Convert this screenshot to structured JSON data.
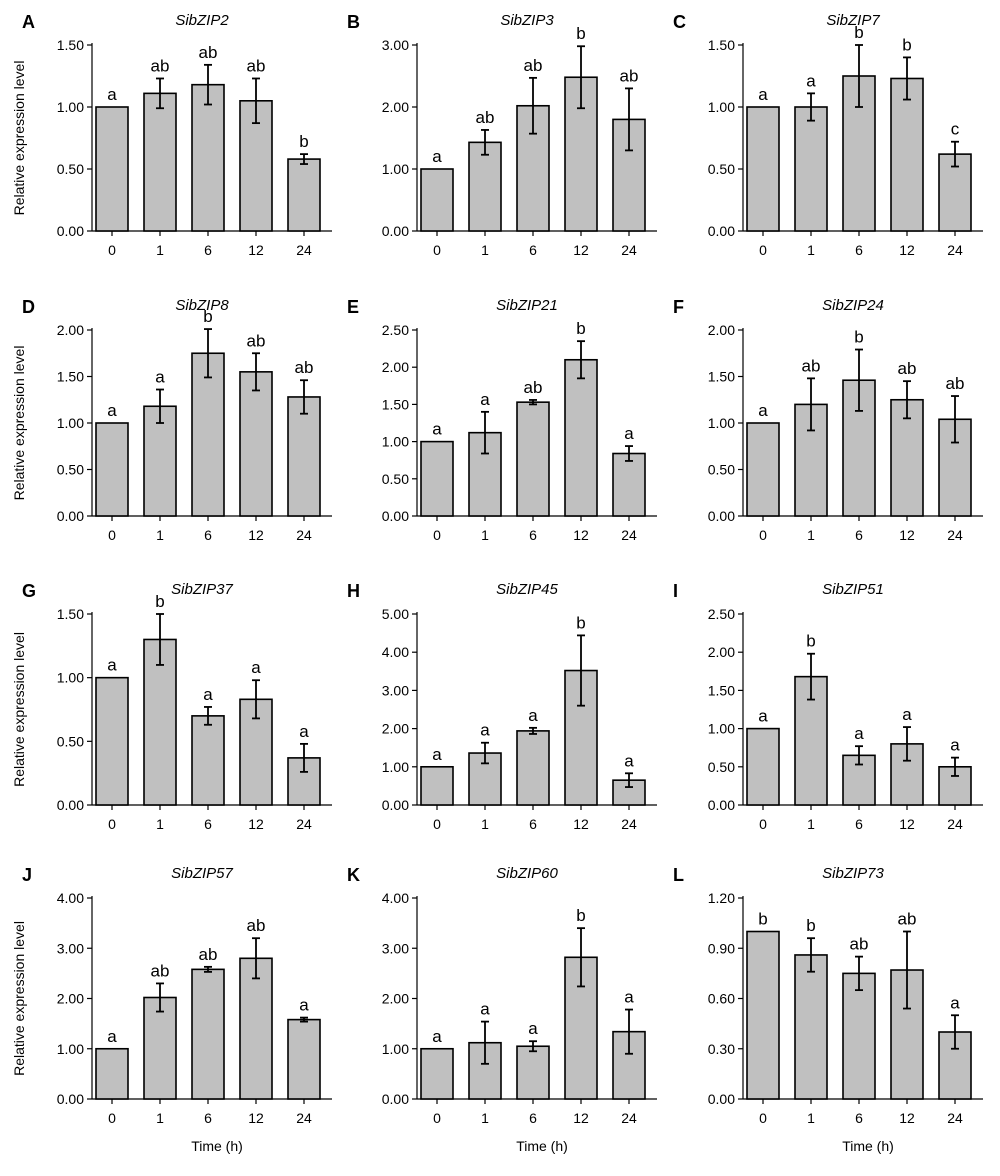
{
  "chart_data": [
    {
      "type": "bar",
      "panel": "A",
      "title": "SibZIP2",
      "categories": [
        "0",
        "1",
        "6",
        "12",
        "24"
      ],
      "values": [
        1.0,
        1.11,
        1.18,
        1.05,
        0.58
      ],
      "errors": [
        0,
        0.12,
        0.16,
        0.18,
        0.04
      ],
      "letters": [
        "a",
        "ab",
        "ab",
        "ab",
        "b"
      ],
      "ylim": [
        0,
        1.5
      ],
      "yticks": [
        "0.00",
        "0.50",
        "1.00",
        "1.50"
      ],
      "ylabel": "Relative expression level",
      "xlabel": ""
    },
    {
      "type": "bar",
      "panel": "B",
      "title": "SibZIP3",
      "categories": [
        "0",
        "1",
        "6",
        "12",
        "24"
      ],
      "values": [
        1.0,
        1.43,
        2.02,
        2.48,
        1.8
      ],
      "errors": [
        0,
        0.2,
        0.45,
        0.5,
        0.5
      ],
      "letters": [
        "a",
        "ab",
        "ab",
        "b",
        "ab"
      ],
      "ylim": [
        0,
        3.0
      ],
      "yticks": [
        "0.00",
        "1.00",
        "2.00",
        "3.00"
      ],
      "ylabel": "",
      "xlabel": ""
    },
    {
      "type": "bar",
      "panel": "C",
      "title": "SibZIP7",
      "categories": [
        "0",
        "1",
        "6",
        "12",
        "24"
      ],
      "values": [
        1.0,
        1.0,
        1.25,
        1.23,
        0.62
      ],
      "errors": [
        0,
        0.11,
        0.25,
        0.17,
        0.1
      ],
      "letters": [
        "a",
        "a",
        "b",
        "b",
        "c"
      ],
      "ylim": [
        0,
        1.5
      ],
      "yticks": [
        "0.00",
        "0.50",
        "1.00",
        "1.50"
      ],
      "ylabel": "",
      "xlabel": ""
    },
    {
      "type": "bar",
      "panel": "D",
      "title": "SibZIP8",
      "categories": [
        "0",
        "1",
        "6",
        "12",
        "24"
      ],
      "values": [
        1.0,
        1.18,
        1.75,
        1.55,
        1.28
      ],
      "errors": [
        0,
        0.18,
        0.26,
        0.2,
        0.18
      ],
      "letters": [
        "a",
        "a",
        "b",
        "ab",
        "ab"
      ],
      "ylim": [
        0,
        2.0
      ],
      "yticks": [
        "0.00",
        "0.50",
        "1.00",
        "1.50",
        "2.00"
      ],
      "ylabel": "Relative expression level",
      "xlabel": ""
    },
    {
      "type": "bar",
      "panel": "E",
      "title": "SibZIP21",
      "categories": [
        "0",
        "1",
        "6",
        "12",
        "24"
      ],
      "values": [
        1.0,
        1.12,
        1.53,
        2.1,
        0.84
      ],
      "errors": [
        0,
        0.28,
        0.03,
        0.25,
        0.1
      ],
      "letters": [
        "a",
        "a",
        "ab",
        "b",
        "a"
      ],
      "ylim": [
        0,
        2.5
      ],
      "yticks": [
        "0.00",
        "0.50",
        "1.00",
        "1.50",
        "2.00",
        "2.50"
      ],
      "ylabel": "",
      "xlabel": ""
    },
    {
      "type": "bar",
      "panel": "F",
      "title": "SibZIP24",
      "categories": [
        "0",
        "1",
        "6",
        "12",
        "24"
      ],
      "values": [
        1.0,
        1.2,
        1.46,
        1.25,
        1.04
      ],
      "errors": [
        0,
        0.28,
        0.33,
        0.2,
        0.25
      ],
      "letters": [
        "a",
        "ab",
        "b",
        "ab",
        "ab"
      ],
      "ylim": [
        0,
        2.0
      ],
      "yticks": [
        "0.00",
        "0.50",
        "1.00",
        "1.50",
        "2.00"
      ],
      "ylabel": "",
      "xlabel": ""
    },
    {
      "type": "bar",
      "panel": "G",
      "title": "SibZIP37",
      "categories": [
        "0",
        "1",
        "6",
        "12",
        "24"
      ],
      "values": [
        1.0,
        1.3,
        0.7,
        0.83,
        0.37
      ],
      "errors": [
        0,
        0.2,
        0.07,
        0.15,
        0.11
      ],
      "letters": [
        "a",
        "b",
        "a",
        "a",
        "a"
      ],
      "ylim": [
        0,
        1.5
      ],
      "yticks": [
        "0.00",
        "0.50",
        "1.00",
        "1.50"
      ],
      "ylabel": "Relative expression level",
      "xlabel": ""
    },
    {
      "type": "bar",
      "panel": "H",
      "title": "SibZIP45",
      "categories": [
        "0",
        "1",
        "6",
        "12",
        "24"
      ],
      "values": [
        1.0,
        1.36,
        1.94,
        3.52,
        0.65
      ],
      "errors": [
        0,
        0.27,
        0.08,
        0.92,
        0.18
      ],
      "letters": [
        "a",
        "a",
        "a",
        "b",
        "a"
      ],
      "ylim": [
        0,
        5.0
      ],
      "yticks": [
        "0.00",
        "1.00",
        "2.00",
        "3.00",
        "4.00",
        "5.00"
      ],
      "ylabel": "",
      "xlabel": ""
    },
    {
      "type": "bar",
      "panel": "I",
      "title": "SibZIP51",
      "categories": [
        "0",
        "1",
        "6",
        "12",
        "24"
      ],
      "values": [
        1.0,
        1.68,
        0.65,
        0.8,
        0.5
      ],
      "errors": [
        0,
        0.3,
        0.12,
        0.22,
        0.12
      ],
      "letters": [
        "a",
        "b",
        "a",
        "a",
        "a"
      ],
      "ylim": [
        0,
        2.5
      ],
      "yticks": [
        "0.00",
        "0.50",
        "1.00",
        "1.50",
        "2.00",
        "2.50"
      ],
      "ylabel": "",
      "xlabel": ""
    },
    {
      "type": "bar",
      "panel": "J",
      "title": "SibZIP57",
      "categories": [
        "0",
        "1",
        "6",
        "12",
        "24"
      ],
      "values": [
        1.0,
        2.02,
        2.58,
        2.8,
        1.58
      ],
      "errors": [
        0,
        0.28,
        0.05,
        0.4,
        0.04
      ],
      "letters": [
        "a",
        "ab",
        "ab",
        "ab",
        "a"
      ],
      "ylim": [
        0,
        4.0
      ],
      "yticks": [
        "0.00",
        "1.00",
        "2.00",
        "3.00",
        "4.00"
      ],
      "ylabel": "Relative expression level",
      "xlabel": "Time (h)"
    },
    {
      "type": "bar",
      "panel": "K",
      "title": "SibZIP60",
      "categories": [
        "0",
        "1",
        "6",
        "12",
        "24"
      ],
      "values": [
        1.0,
        1.12,
        1.05,
        2.82,
        1.34
      ],
      "errors": [
        0,
        0.42,
        0.1,
        0.58,
        0.44
      ],
      "letters": [
        "a",
        "a",
        "a",
        "b",
        "a"
      ],
      "ylim": [
        0,
        4.0
      ],
      "yticks": [
        "0.00",
        "1.00",
        "2.00",
        "3.00",
        "4.00"
      ],
      "ylabel": "",
      "xlabel": "Time (h)"
    },
    {
      "type": "bar",
      "panel": "L",
      "title": "SibZIP73",
      "categories": [
        "0",
        "1",
        "6",
        "12",
        "24"
      ],
      "values": [
        1.0,
        0.86,
        0.75,
        0.77,
        0.4
      ],
      "errors": [
        0,
        0.1,
        0.1,
        0.23,
        0.1
      ],
      "letters": [
        "b",
        "b",
        "ab",
        "ab",
        "a"
      ],
      "ylim": [
        0,
        1.2
      ],
      "yticks": [
        "0.00",
        "0.30",
        "0.60",
        "0.90",
        "1.20"
      ],
      "ylabel": "",
      "xlabel": "Time (h)"
    }
  ]
}
